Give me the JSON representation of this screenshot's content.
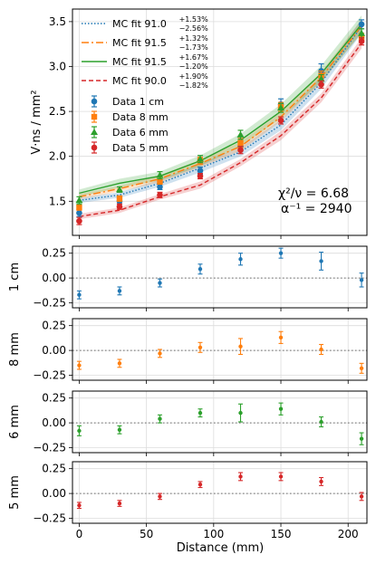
{
  "chart_data": {
    "type": "line",
    "x_label": "Distance (mm)",
    "x_ticks": [
      0,
      50,
      100,
      150,
      200
    ],
    "x": [
      0,
      30,
      60,
      90,
      120,
      150,
      180,
      210
    ],
    "xlim": [
      -5,
      214
    ],
    "main": {
      "ylabel": "V·ns / mm²",
      "ylim": [
        1.12,
        3.64
      ],
      "yticks": [
        "1.5",
        "2.0",
        "2.5",
        "3.0",
        "3.5"
      ],
      "ytick_values": [
        1.5,
        2.0,
        2.5,
        3.0,
        3.5
      ],
      "stats_line1": "χ²/ν = 6.68",
      "stats_line2": "α⁻¹ = 2940",
      "fits": [
        {
          "name": "MC fit 91.0",
          "sup": "+1.53%",
          "sub": "−2.56%",
          "color": "#1f77b4",
          "dash": "1.5,2",
          "values": [
            1.51,
            1.57,
            1.7,
            1.87,
            2.05,
            2.35,
            2.82,
            3.45
          ],
          "band": [
            0.03,
            0.03,
            0.04,
            0.05,
            0.05,
            0.06,
            0.07,
            0.08
          ]
        },
        {
          "name": "MC fit 91.5",
          "sup": "+1.32%",
          "sub": "−1.73%",
          "color": "#ff7f0e",
          "dash": "8,3,2,3",
          "values": [
            1.55,
            1.64,
            1.75,
            1.92,
            2.11,
            2.44,
            2.88,
            3.45
          ],
          "band": [
            0.03,
            0.03,
            0.04,
            0.04,
            0.05,
            0.05,
            0.06,
            0.07
          ]
        },
        {
          "name": "MC fit 91.5",
          "sup": "+1.67%",
          "sub": "−1.20%",
          "color": "#2ca02c",
          "dash": "",
          "values": [
            1.59,
            1.7,
            1.78,
            1.95,
            2.18,
            2.5,
            2.92,
            3.47
          ],
          "band": [
            0.04,
            0.05,
            0.05,
            0.06,
            0.07,
            0.08,
            0.09,
            0.1
          ]
        },
        {
          "name": "MC fit 90.0",
          "sup": "+1.90%",
          "sub": "−1.82%",
          "color": "#d62728",
          "dash": "5,3",
          "values": [
            1.33,
            1.4,
            1.55,
            1.68,
            1.93,
            2.23,
            2.65,
            3.26
          ],
          "band": [
            0.03,
            0.03,
            0.03,
            0.04,
            0.04,
            0.05,
            0.05,
            0.06
          ]
        }
      ],
      "data": [
        {
          "name": "Data 1 cm",
          "color": "#1f77b4",
          "marker": "circle",
          "values": [
            1.37,
            1.5,
            1.66,
            1.84,
            2.11,
            2.58,
            2.95,
            3.47
          ],
          "err": [
            0.04,
            0.03,
            0.03,
            0.04,
            0.05,
            0.06,
            0.08,
            0.05
          ]
        },
        {
          "name": "Data 8 mm",
          "color": "#ff7f0e",
          "marker": "square",
          "values": [
            1.43,
            1.53,
            1.72,
            1.95,
            2.15,
            2.55,
            2.9,
            3.32
          ],
          "err": [
            0.03,
            0.03,
            0.03,
            0.04,
            0.05,
            0.05,
            0.05,
            0.05
          ]
        },
        {
          "name": "Data 6 mm",
          "color": "#2ca02c",
          "marker": "triangle",
          "values": [
            1.51,
            1.63,
            1.79,
            1.97,
            2.24,
            2.54,
            2.86,
            3.37
          ],
          "err": [
            0.04,
            0.03,
            0.04,
            0.04,
            0.05,
            0.05,
            0.05,
            0.05
          ]
        },
        {
          "name": "Data 5 mm",
          "color": "#d62728",
          "marker": "circle",
          "values": [
            1.28,
            1.44,
            1.57,
            1.78,
            2.07,
            2.4,
            2.8,
            3.28
          ],
          "err": [
            0.04,
            0.03,
            0.03,
            0.03,
            0.04,
            0.04,
            0.04,
            0.04
          ]
        }
      ]
    },
    "residuals": [
      {
        "ylabel": "1 cm",
        "color": "#1f77b4",
        "ylim": [
          -0.3,
          0.32
        ],
        "yticks": [
          "−0.25",
          "0.00",
          "0.25"
        ],
        "ytick_values": [
          -0.25,
          0,
          0.25
        ],
        "values": [
          -0.17,
          -0.13,
          -0.05,
          0.09,
          0.19,
          0.25,
          0.17,
          -0.02
        ],
        "err": [
          0.04,
          0.04,
          0.04,
          0.05,
          0.06,
          0.05,
          0.09,
          0.07
        ]
      },
      {
        "ylabel": "8 mm",
        "color": "#ff7f0e",
        "ylim": [
          -0.3,
          0.32
        ],
        "yticks": [
          "−0.25",
          "0.00",
          "0.25"
        ],
        "ytick_values": [
          -0.25,
          0,
          0.25
        ],
        "values": [
          -0.15,
          -0.13,
          -0.03,
          0.03,
          0.04,
          0.13,
          0.01,
          -0.18
        ],
        "err": [
          0.04,
          0.04,
          0.04,
          0.05,
          0.08,
          0.06,
          0.05,
          0.05
        ]
      },
      {
        "ylabel": "6 mm",
        "color": "#2ca02c",
        "ylim": [
          -0.3,
          0.32
        ],
        "yticks": [
          "−0.25",
          "0.00",
          "0.25"
        ],
        "ytick_values": [
          -0.25,
          0,
          0.25
        ],
        "values": [
          -0.08,
          -0.07,
          0.04,
          0.1,
          0.1,
          0.14,
          0.01,
          -0.16
        ],
        "err": [
          0.05,
          0.04,
          0.04,
          0.04,
          0.09,
          0.06,
          0.05,
          0.06
        ]
      },
      {
        "ylabel": "5 mm",
        "color": "#d62728",
        "ylim": [
          -0.3,
          0.32
        ],
        "yticks": [
          "−0.25",
          "0.00",
          "0.25"
        ],
        "ytick_values": [
          -0.25,
          0,
          0.25
        ],
        "values": [
          -0.12,
          -0.1,
          -0.03,
          0.09,
          0.17,
          0.17,
          0.12,
          -0.03
        ],
        "err": [
          0.03,
          0.03,
          0.03,
          0.03,
          0.04,
          0.04,
          0.04,
          0.04
        ]
      }
    ]
  }
}
